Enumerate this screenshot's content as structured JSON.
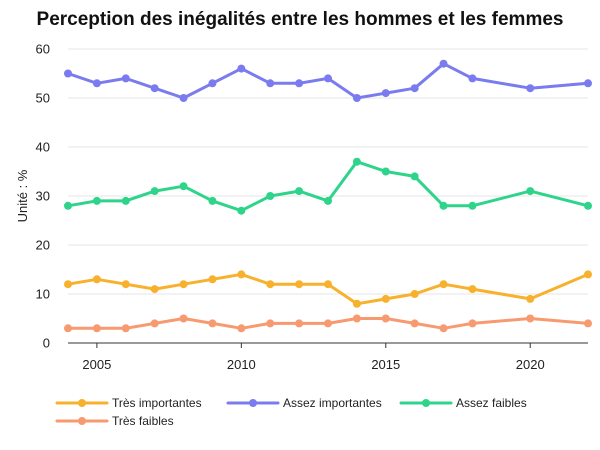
{
  "chart_data": {
    "type": "line",
    "title": "Perception des inégalités entre les hommes et les femmes",
    "ylabel": "Unité : %",
    "xlabel": "",
    "xlim": [
      2004,
      2022
    ],
    "ylim": [
      0,
      60
    ],
    "x_ticks": [
      2005,
      2010,
      2015,
      2020
    ],
    "y_ticks": [
      0,
      10,
      20,
      30,
      40,
      50,
      60
    ],
    "grid": "horizontal",
    "legend_position": "bottom",
    "series": [
      {
        "name": "Très importantes",
        "color": "#f7b12d",
        "points": [
          [
            2004,
            12
          ],
          [
            2005,
            13
          ],
          [
            2006,
            12
          ],
          [
            2007,
            11
          ],
          [
            2008,
            12
          ],
          [
            2009,
            13
          ],
          [
            2010,
            14
          ],
          [
            2011,
            12
          ],
          [
            2012,
            12
          ],
          [
            2013,
            12
          ],
          [
            2014,
            8
          ],
          [
            2015,
            9
          ],
          [
            2016,
            10
          ],
          [
            2017,
            12
          ],
          [
            2018,
            11
          ],
          [
            2020,
            9
          ],
          [
            2022,
            14
          ]
        ]
      },
      {
        "name": "Assez importantes",
        "color": "#7b7bf0",
        "points": [
          [
            2004,
            55
          ],
          [
            2005,
            53
          ],
          [
            2006,
            54
          ],
          [
            2007,
            52
          ],
          [
            2008,
            50
          ],
          [
            2009,
            53
          ],
          [
            2010,
            56
          ],
          [
            2011,
            53
          ],
          [
            2012,
            53
          ],
          [
            2013,
            54
          ],
          [
            2014,
            50
          ],
          [
            2015,
            51
          ],
          [
            2016,
            52
          ],
          [
            2017,
            57
          ],
          [
            2018,
            54
          ],
          [
            2020,
            52
          ],
          [
            2022,
            53
          ]
        ]
      },
      {
        "name": "Assez faibles",
        "color": "#2fd48b",
        "points": [
          [
            2004,
            28
          ],
          [
            2005,
            29
          ],
          [
            2006,
            29
          ],
          [
            2007,
            31
          ],
          [
            2008,
            32
          ],
          [
            2009,
            29
          ],
          [
            2010,
            27
          ],
          [
            2011,
            30
          ],
          [
            2012,
            31
          ],
          [
            2013,
            29
          ],
          [
            2014,
            37
          ],
          [
            2015,
            35
          ],
          [
            2016,
            34
          ],
          [
            2017,
            28
          ],
          [
            2018,
            28
          ],
          [
            2020,
            31
          ],
          [
            2022,
            28
          ]
        ]
      },
      {
        "name": "Très faibles",
        "color": "#f79a70",
        "points": [
          [
            2004,
            3
          ],
          [
            2005,
            3
          ],
          [
            2006,
            3
          ],
          [
            2007,
            4
          ],
          [
            2008,
            5
          ],
          [
            2009,
            4
          ],
          [
            2010,
            3
          ],
          [
            2011,
            4
          ],
          [
            2012,
            4
          ],
          [
            2013,
            4
          ],
          [
            2014,
            5
          ],
          [
            2015,
            5
          ],
          [
            2016,
            4
          ],
          [
            2017,
            3
          ],
          [
            2018,
            4
          ],
          [
            2020,
            5
          ],
          [
            2022,
            4
          ]
        ]
      }
    ]
  }
}
